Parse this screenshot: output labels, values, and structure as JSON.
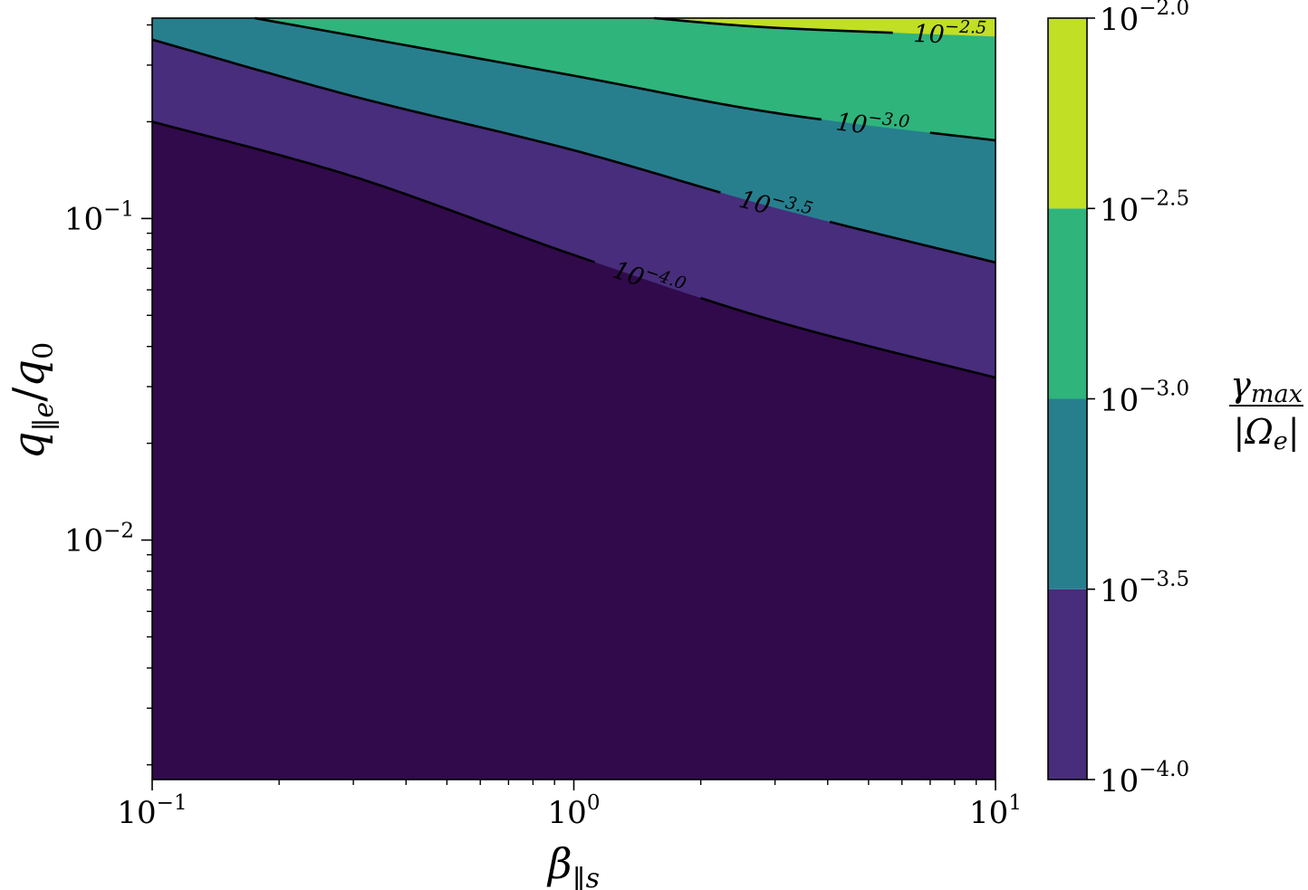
{
  "chart_data": {
    "type": "contour",
    "xlabel": "β‖s",
    "ylabel": "q‖e/q0",
    "x_scale": "log",
    "y_scale": "log",
    "xlim": [
      0.1,
      10
    ],
    "ylim": [
      0.0018,
      0.42
    ],
    "x_ticks": [
      {
        "value": 0.1,
        "base": "10",
        "exp": "−1"
      },
      {
        "value": 1,
        "base": "10",
        "exp": "0"
      },
      {
        "value": 10,
        "base": "10",
        "exp": "1"
      }
    ],
    "y_ticks": [
      {
        "value": 0.01,
        "base": "10",
        "exp": "−2"
      },
      {
        "value": 0.1,
        "base": "10",
        "exp": "−1"
      }
    ],
    "colorbar": {
      "label_numerator": "γmax",
      "label_denominator": "|Ωe|",
      "ticks": [
        {
          "value": -4.0,
          "text_exp": "−4.0"
        },
        {
          "value": -3.5,
          "text_exp": "−3.5"
        },
        {
          "value": -3.0,
          "text_exp": "−3.0"
        },
        {
          "value": -2.5,
          "text_exp": "−2.5"
        },
        {
          "value": -2.0,
          "text_exp": "−2.0"
        }
      ],
      "bands": [
        {
          "from": -4.0,
          "to": -3.5,
          "color": "#472d7b"
        },
        {
          "from": -3.5,
          "to": -3.0,
          "color": "#277f8e"
        },
        {
          "from": -3.0,
          "to": -2.5,
          "color": "#2fb47c"
        },
        {
          "from": -2.5,
          "to": -2.0,
          "color": "#c0df25"
        }
      ]
    },
    "background_color": "#300a4a",
    "contours": [
      {
        "level": -4.0,
        "label_exp": "−4.0",
        "label_at_x": 1.5,
        "points": [
          [
            0.1,
            0.2
          ],
          [
            0.3,
            0.135
          ],
          [
            1,
            0.077
          ],
          [
            3,
            0.048
          ],
          [
            10,
            0.032
          ]
        ]
      },
      {
        "level": -3.5,
        "label_exp": "−3.5",
        "label_at_x": 3.0,
        "points": [
          [
            0.1,
            0.36
          ],
          [
            0.3,
            0.24
          ],
          [
            1,
            0.163
          ],
          [
            3,
            0.108
          ],
          [
            10,
            0.073
          ]
        ]
      },
      {
        "level": -3.0,
        "label_exp": "−3.0",
        "label_at_x": 5.0,
        "points": [
          [
            0.175,
            0.42
          ],
          [
            0.3,
            0.37
          ],
          [
            1,
            0.278
          ],
          [
            3,
            0.213
          ],
          [
            10,
            0.175
          ]
        ]
      },
      {
        "level": -2.5,
        "label_exp": "−2.5",
        "label_at_x": 7.7,
        "points": [
          [
            1.55,
            0.42
          ],
          [
            3,
            0.392
          ],
          [
            10,
            0.368
          ]
        ]
      }
    ]
  }
}
